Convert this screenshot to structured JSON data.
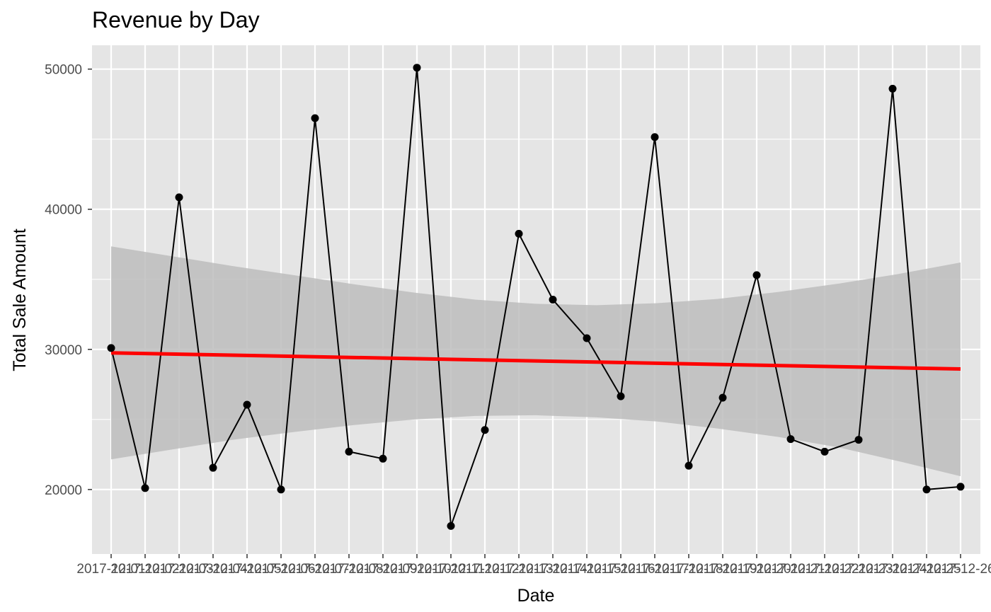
{
  "chart_data": {
    "type": "line",
    "title": "Revenue by Day",
    "xlabel": "Date",
    "ylabel": "Total Sale Amount",
    "x_tick_labels": [
      "2017-12-01",
      "2017-12-02",
      "2017-12-03",
      "2017-12-04",
      "2017-12-05",
      "2017-12-06",
      "2017-12-07",
      "2017-12-08",
      "2017-12-09",
      "2017-12-10",
      "2017-12-11",
      "2017-12-12",
      "2017-12-13",
      "2017-12-14",
      "2017-12-15",
      "2017-12-16",
      "2017-12-17",
      "2017-12-18",
      "2017-12-19",
      "2017-12-20",
      "2017-12-21",
      "2017-12-22",
      "2017-12-23",
      "2017-12-24",
      "2017-12-25",
      "2017-12-26"
    ],
    "y_ticks": [
      20000,
      30000,
      40000,
      50000
    ],
    "ylim": [
      15400,
      51700
    ],
    "series": [
      {
        "x": [
          "2017-12-01",
          "2017-12-02",
          "2017-12-03",
          "2017-12-04",
          "2017-12-05",
          "2017-12-06",
          "2017-12-07",
          "2017-12-08",
          "2017-12-09",
          "2017-12-10",
          "2017-12-11",
          "2017-12-12",
          "2017-12-13",
          "2017-12-14",
          "2017-12-15",
          "2017-12-16",
          "2017-12-17",
          "2017-12-18",
          "2017-12-19",
          "2017-12-20",
          "2017-12-21",
          "2017-12-22",
          "2017-12-23",
          "2017-12-24",
          "2017-12-25",
          "2017-12-26"
        ],
        "values": [
          30100,
          20100,
          40850,
          21550,
          26050,
          20000,
          46500,
          22700,
          22200,
          50100,
          17400,
          24250,
          38250,
          33550,
          30800,
          26650,
          45150,
          21700,
          26550,
          35300,
          23600,
          22700,
          23550,
          48600,
          20000,
          20200
        ]
      }
    ],
    "trend_line": {
      "start": 29750,
      "end": 28600
    },
    "confidence_band": {
      "upper": [
        37350,
        36650,
        35950,
        35300,
        34650,
        34050,
        33550,
        33250,
        33150,
        33300,
        33600,
        34100,
        34700,
        35400,
        36200
      ],
      "lower": [
        22150,
        22850,
        23550,
        24100,
        24600,
        25000,
        25250,
        25300,
        25150,
        24850,
        24350,
        23750,
        23000,
        22000,
        20950
      ]
    },
    "grid": true,
    "colors": {
      "panel": "#e5e5e5",
      "grid": "#ffffff",
      "line": "#000000",
      "trend": "#ff0000",
      "band": "#bdbdbd"
    }
  }
}
